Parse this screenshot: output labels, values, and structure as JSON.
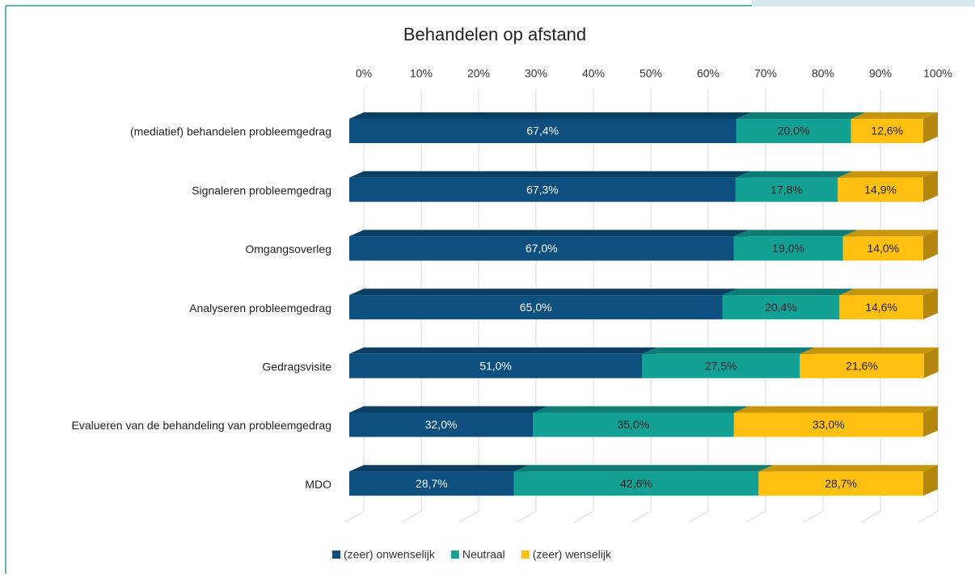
{
  "chart_data": {
    "type": "bar3d_stacked_horizontal",
    "title": "Behandelen op afstand",
    "categories": [
      "(mediatief) behandelen probleemgedrag",
      "Signaleren probleemgedrag",
      "Omgangsoverleg",
      "Analyseren probleemgedrag",
      "Gedragsvisite",
      "Evalueren van de behandeling van probleemgedrag",
      "MDO"
    ],
    "series": [
      {
        "name": "(zeer) onwenselijk",
        "color": "#0d4f7f",
        "values": [
          67.4,
          67.3,
          67.0,
          65.0,
          51.0,
          32.0,
          28.7
        ],
        "value_labels": [
          "67,4%",
          "67,3%",
          "67,0%",
          "65,0%",
          "51,0%",
          "32,0%",
          "28,7%"
        ]
      },
      {
        "name": "Neutraal",
        "color": "#13a095",
        "values": [
          20.0,
          17.8,
          19.0,
          20.4,
          27.5,
          35.0,
          42.6
        ],
        "value_labels": [
          "20,0%",
          "17,8%",
          "19,0%",
          "20,4%",
          "27,5%",
          "35,0%",
          "42,6%"
        ]
      },
      {
        "name": "(zeer) wenselijk",
        "color": "#ffc012",
        "values": [
          12.6,
          14.9,
          14.0,
          14.6,
          21.6,
          33.0,
          28.7
        ],
        "value_labels": [
          "12,6%",
          "14,9%",
          "14,0%",
          "14,6%",
          "21,6%",
          "33,0%",
          "28,7%"
        ]
      }
    ],
    "xlim": [
      0,
      100
    ],
    "xticks": [
      {
        "value": 0,
        "label": "0%"
      },
      {
        "value": 10,
        "label": "10%"
      },
      {
        "value": 20,
        "label": "20%"
      },
      {
        "value": 30,
        "label": "30%"
      },
      {
        "value": 40,
        "label": "40%"
      },
      {
        "value": 50,
        "label": "50%"
      },
      {
        "value": 60,
        "label": "60%"
      },
      {
        "value": 70,
        "label": "70%"
      },
      {
        "value": 80,
        "label": "80%"
      },
      {
        "value": 90,
        "label": "90%"
      },
      {
        "value": 100,
        "label": "100%"
      }
    ],
    "grid": true,
    "legend": "bottom"
  }
}
